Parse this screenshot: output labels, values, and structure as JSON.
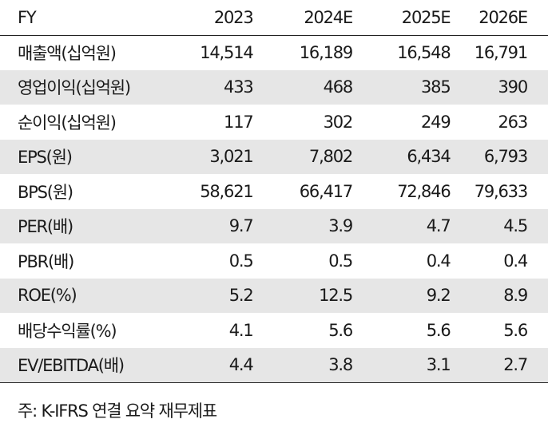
{
  "table": {
    "header": {
      "label": "FY",
      "years": [
        "2023",
        "2024E",
        "2025E",
        "2026E"
      ]
    },
    "rows": [
      {
        "label": "매출액(십억원)",
        "values": [
          "14,514",
          "16,189",
          "16,548",
          "16,791"
        ]
      },
      {
        "label": "영업이익(십억원)",
        "values": [
          "433",
          "468",
          "385",
          "390"
        ]
      },
      {
        "label": "순이익(십억원)",
        "values": [
          "117",
          "302",
          "249",
          "263"
        ]
      },
      {
        "label": "EPS(원)",
        "values": [
          "3,021",
          "7,802",
          "6,434",
          "6,793"
        ]
      },
      {
        "label": "BPS(원)",
        "values": [
          "58,621",
          "66,417",
          "72,846",
          "79,633"
        ]
      },
      {
        "label": "PER(배)",
        "values": [
          "9.7",
          "3.9",
          "4.7",
          "4.5"
        ]
      },
      {
        "label": "PBR(배)",
        "values": [
          "0.5",
          "0.5",
          "0.4",
          "0.4"
        ]
      },
      {
        "label": "ROE(%)",
        "values": [
          "5.2",
          "12.5",
          "9.2",
          "8.9"
        ]
      },
      {
        "label": "배당수익률(%)",
        "values": [
          "4.1",
          "5.6",
          "5.6",
          "5.6"
        ]
      },
      {
        "label": "EV/EBITDA(배)",
        "values": [
          "4.4",
          "3.8",
          "3.1",
          "2.7"
        ]
      }
    ]
  },
  "footnote": "주: K-IFRS 연결 요약 재무제표",
  "colors": {
    "stripe": "#e6e6e6",
    "rule": "#222222",
    "text": "#1a1a1a"
  }
}
